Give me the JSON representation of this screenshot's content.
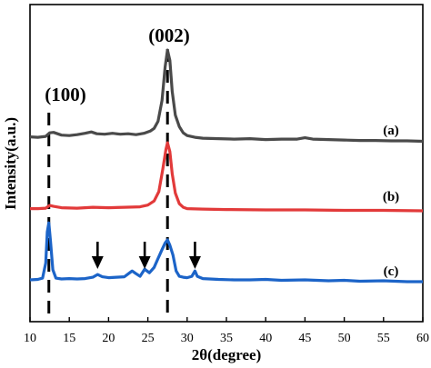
{
  "chart_data": {
    "type": "line",
    "title": "",
    "xlabel": "2θ(degree)",
    "ylabel": "Intensity(a.u.)",
    "xlim": [
      10,
      60
    ],
    "xticks": [
      10,
      15,
      20,
      25,
      30,
      35,
      40,
      45,
      50,
      55,
      60
    ],
    "y_scale": "arbitrary units, curves vertically offset",
    "y_ticks_shown": false,
    "grid": false,
    "legend": "none; curve labels at right end",
    "peak_annotations": [
      {
        "label": "(100)",
        "x": 12.4
      },
      {
        "label": "(002)",
        "x": 27.5
      }
    ],
    "arrow_markers_curve": "(c)",
    "arrow_markers_x": [
      18.6,
      24.6,
      31.0
    ],
    "series": [
      {
        "name": "(a)",
        "color": "#4a4a4a",
        "points": [
          [
            10,
            0.13
          ],
          [
            11,
            0.12
          ],
          [
            12,
            0.14
          ],
          [
            12.5,
            0.22
          ],
          [
            13,
            0.23
          ],
          [
            14,
            0.17
          ],
          [
            15,
            0.16
          ],
          [
            16,
            0.18
          ],
          [
            17,
            0.21
          ],
          [
            17.8,
            0.24
          ],
          [
            18.5,
            0.2
          ],
          [
            19.5,
            0.19
          ],
          [
            20.5,
            0.21
          ],
          [
            21.5,
            0.19
          ],
          [
            22.5,
            0.2
          ],
          [
            23.5,
            0.18
          ],
          [
            24.5,
            0.21
          ],
          [
            25.3,
            0.26
          ],
          [
            25.8,
            0.32
          ],
          [
            26.3,
            0.48
          ],
          [
            26.8,
            0.95
          ],
          [
            27.2,
            1.7
          ],
          [
            27.5,
            2.08
          ],
          [
            27.8,
            1.85
          ],
          [
            28.1,
            1.15
          ],
          [
            28.5,
            0.62
          ],
          [
            29,
            0.36
          ],
          [
            29.5,
            0.22
          ],
          [
            30,
            0.16
          ],
          [
            31,
            0.12
          ],
          [
            32,
            0.1
          ],
          [
            34,
            0.09
          ],
          [
            36,
            0.08
          ],
          [
            38,
            0.09
          ],
          [
            40,
            0.07
          ],
          [
            42,
            0.08
          ],
          [
            44,
            0.08
          ],
          [
            45,
            0.11
          ],
          [
            46,
            0.08
          ],
          [
            48,
            0.07
          ],
          [
            50,
            0.06
          ],
          [
            52,
            0.05
          ],
          [
            54,
            0.05
          ],
          [
            56,
            0.04
          ],
          [
            58,
            0.04
          ],
          [
            60,
            0.03
          ]
        ]
      },
      {
        "name": "(b)",
        "color": "#e23a3a",
        "points": [
          [
            10,
            0.07
          ],
          [
            11,
            0.07
          ],
          [
            12,
            0.08
          ],
          [
            12.5,
            0.14
          ],
          [
            13,
            0.12
          ],
          [
            14,
            0.09
          ],
          [
            16,
            0.08
          ],
          [
            18,
            0.1
          ],
          [
            20,
            0.09
          ],
          [
            22,
            0.1
          ],
          [
            24,
            0.11
          ],
          [
            25,
            0.15
          ],
          [
            25.8,
            0.24
          ],
          [
            26.4,
            0.45
          ],
          [
            26.9,
            0.95
          ],
          [
            27.3,
            1.4
          ],
          [
            27.5,
            1.55
          ],
          [
            27.8,
            1.35
          ],
          [
            28.1,
            0.85
          ],
          [
            28.5,
            0.42
          ],
          [
            29,
            0.18
          ],
          [
            29.5,
            0.1
          ],
          [
            30,
            0.07
          ],
          [
            32,
            0.06
          ],
          [
            35,
            0.05
          ],
          [
            40,
            0.04
          ],
          [
            45,
            0.04
          ],
          [
            50,
            0.03
          ],
          [
            55,
            0.03
          ],
          [
            60,
            0.02
          ]
        ]
      },
      {
        "name": "(c)",
        "color": "#1c64c8",
        "points": [
          [
            10,
            0.02
          ],
          [
            11,
            0.03
          ],
          [
            11.6,
            0.06
          ],
          [
            12,
            0.4
          ],
          [
            12.2,
            1.1
          ],
          [
            12.4,
            1.3
          ],
          [
            12.6,
            0.9
          ],
          [
            12.9,
            0.25
          ],
          [
            13.3,
            0.06
          ],
          [
            14,
            0.04
          ],
          [
            15,
            0.05
          ],
          [
            16,
            0.04
          ],
          [
            17,
            0.05
          ],
          [
            18,
            0.08
          ],
          [
            18.6,
            0.14
          ],
          [
            19.2,
            0.09
          ],
          [
            20,
            0.07
          ],
          [
            21,
            0.08
          ],
          [
            22,
            0.09
          ],
          [
            23,
            0.22
          ],
          [
            23.5,
            0.16
          ],
          [
            24,
            0.1
          ],
          [
            24.6,
            0.26
          ],
          [
            25.2,
            0.18
          ],
          [
            25.8,
            0.3
          ],
          [
            26.3,
            0.5
          ],
          [
            26.8,
            0.7
          ],
          [
            27.2,
            0.85
          ],
          [
            27.5,
            0.92
          ],
          [
            27.8,
            0.8
          ],
          [
            28.2,
            0.58
          ],
          [
            28.6,
            0.22
          ],
          [
            29,
            0.1
          ],
          [
            29.5,
            0.08
          ],
          [
            30,
            0.07
          ],
          [
            30.6,
            0.1
          ],
          [
            31,
            0.22
          ],
          [
            31.3,
            0.1
          ],
          [
            32,
            0.05
          ],
          [
            34,
            0.03
          ],
          [
            36,
            0.02
          ],
          [
            38,
            0.02
          ],
          [
            40,
            0.03
          ],
          [
            42,
            0.01
          ],
          [
            45,
            0.02
          ],
          [
            48,
            0.0
          ],
          [
            50,
            0.01
          ],
          [
            52,
            -0.01
          ],
          [
            55,
            0.0
          ],
          [
            58,
            -0.02
          ],
          [
            60,
            -0.02
          ]
        ]
      }
    ]
  }
}
